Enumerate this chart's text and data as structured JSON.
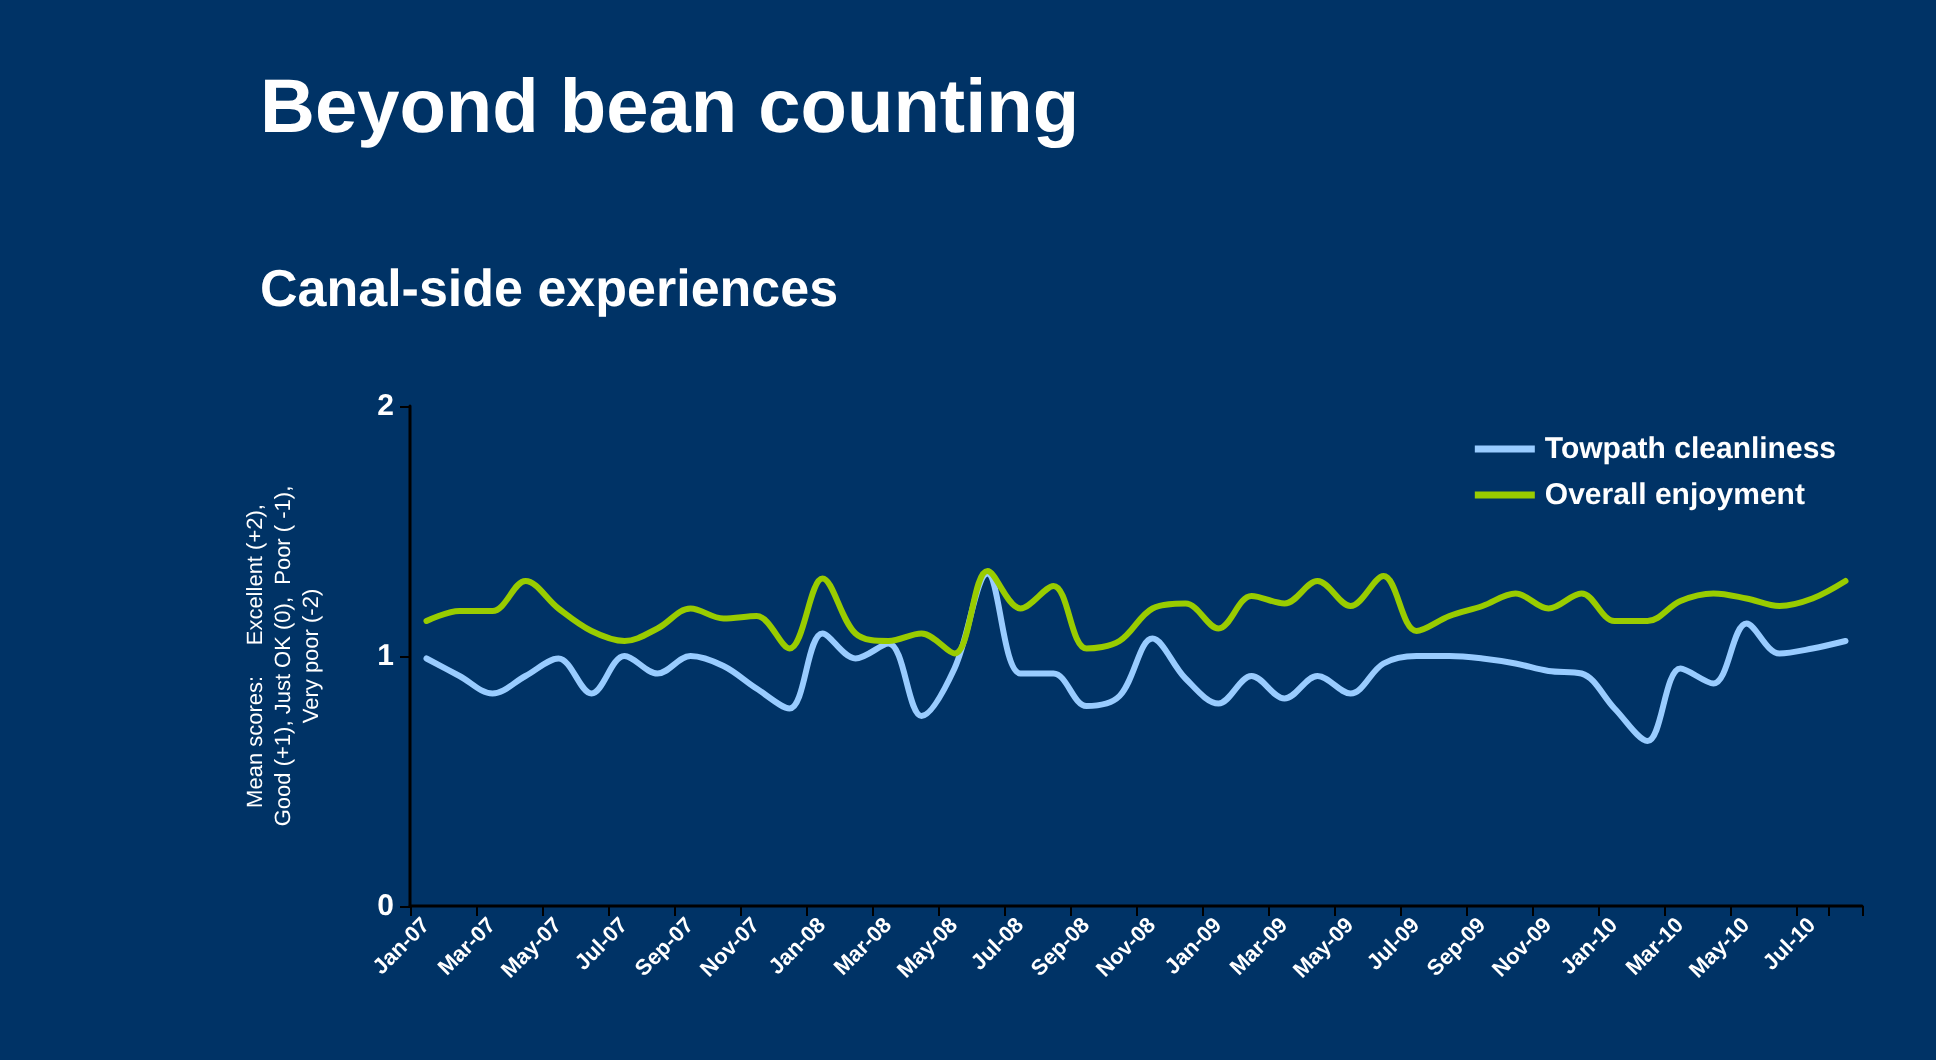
{
  "chart_data": {
    "type": "line",
    "title": "Beyond bean counting",
    "subtitle": "Canal-side experiences",
    "ylabel": "Mean scores:     Excellent (+2),\nGood (+1), Just OK (0),  Poor ( -1),\nVery poor (-2)",
    "categories": [
      "Jan-07",
      null,
      "Mar-07",
      null,
      "May-07",
      null,
      "Jul-07",
      null,
      "Sep-07",
      null,
      "Nov-07",
      null,
      "Jan-08",
      null,
      "Mar-08",
      null,
      "May-08",
      null,
      "Jul-08",
      null,
      "Sep-08",
      null,
      "Nov-08",
      null,
      "Jan-09",
      null,
      "Mar-09",
      null,
      "May-09",
      null,
      "Jul-09",
      null,
      "Sep-09",
      null,
      "Nov-09",
      null,
      "Jan-10",
      null,
      "Mar-10",
      null,
      "May-10",
      null,
      "Jul-10",
      null
    ],
    "series": [
      {
        "name": "Towpath cleanliness",
        "color": "#99ccff",
        "values": [
          0.99,
          0.92,
          0.85,
          0.92,
          0.99,
          0.85,
          1.0,
          0.93,
          1.0,
          0.96,
          0.87,
          0.79,
          1.09,
          0.99,
          1.05,
          0.76,
          0.95,
          1.33,
          0.93,
          0.93,
          0.8,
          0.84,
          1.07,
          0.91,
          0.81,
          0.92,
          0.83,
          0.92,
          0.85,
          0.97,
          1.0,
          1.0,
          0.99,
          0.97,
          0.94,
          0.93,
          0.79,
          0.66,
          0.95,
          0.89,
          1.13,
          1.01,
          1.03,
          1.06
        ]
      },
      {
        "name": "Overall enjoyment",
        "color": "#99cc00",
        "values": [
          1.14,
          1.18,
          1.18,
          1.3,
          1.19,
          1.1,
          1.06,
          1.11,
          1.19,
          1.15,
          1.16,
          1.03,
          1.31,
          1.09,
          1.06,
          1.09,
          1.01,
          1.34,
          1.19,
          1.28,
          1.03,
          1.06,
          1.19,
          1.21,
          1.11,
          1.24,
          1.21,
          1.3,
          1.2,
          1.32,
          1.1,
          1.16,
          1.2,
          1.25,
          1.19,
          1.25,
          1.14,
          1.14,
          1.22,
          1.25,
          1.23,
          1.2,
          1.23,
          1.3
        ]
      }
    ],
    "ylim": [
      0,
      2
    ],
    "yticks": [
      0,
      1,
      2
    ],
    "grid": false,
    "legend": "top right",
    "marker": "none",
    "line_style": "solid"
  }
}
